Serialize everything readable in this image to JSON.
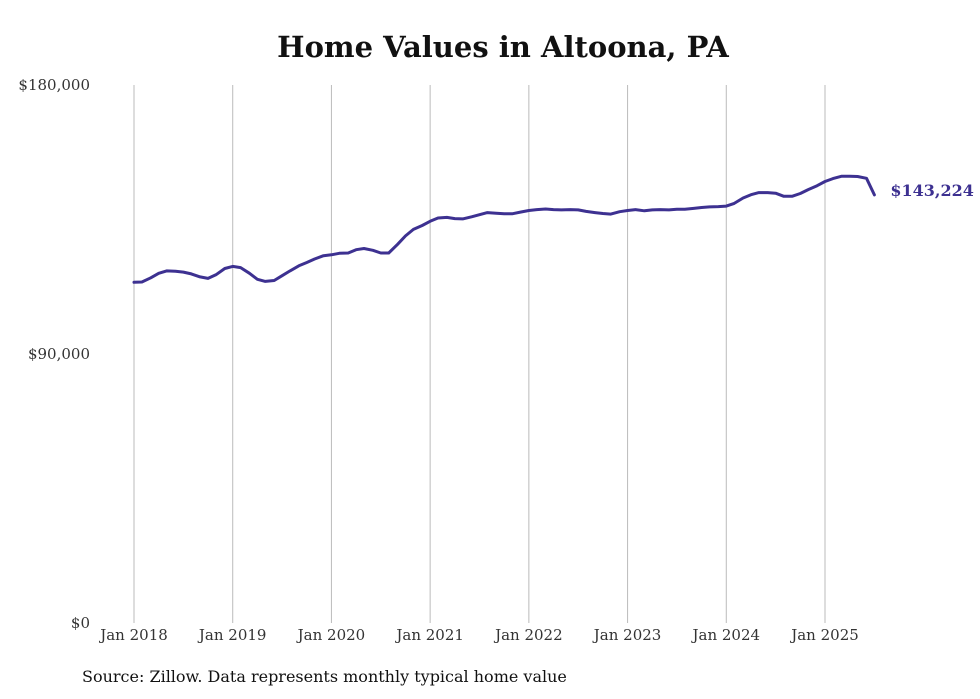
{
  "chart_data": {
    "type": "line",
    "title": "Home Values in Altoona, PA",
    "xlabel": "",
    "ylabel": "",
    "ylim": [
      0,
      180000
    ],
    "y_ticks": [
      {
        "value": 0,
        "label": "$0"
      },
      {
        "value": 90000,
        "label": "$90,000"
      },
      {
        "value": 180000,
        "label": "$180,000"
      }
    ],
    "x_ticks": [
      {
        "value": 2018,
        "label": "Jan 2018"
      },
      {
        "value": 2019,
        "label": "Jan 2019"
      },
      {
        "value": 2020,
        "label": "Jan 2020"
      },
      {
        "value": 2021,
        "label": "Jan 2021"
      },
      {
        "value": 2022,
        "label": "Jan 2022"
      },
      {
        "value": 2023,
        "label": "Jan 2023"
      },
      {
        "value": 2024,
        "label": "Jan 2024"
      },
      {
        "value": 2025,
        "label": "Jan 2025"
      }
    ],
    "xlim": [
      2018,
      2025.5
    ],
    "grid": "vertical",
    "line_color": "#3d3191",
    "grid_color": "#bbbbbb",
    "end_label": "$143,224",
    "series": [
      {
        "x": [
          2018.0,
          2018.08,
          2018.17,
          2018.25,
          2018.33,
          2018.42,
          2018.5,
          2018.58,
          2018.67,
          2018.75,
          2018.83,
          2018.92,
          2019.0,
          2019.08,
          2019.17,
          2019.25,
          2019.33,
          2019.42,
          2019.5,
          2019.58,
          2019.67,
          2019.75,
          2019.83,
          2019.92,
          2020.0,
          2020.08,
          2020.17,
          2020.25,
          2020.33,
          2020.42,
          2020.5,
          2020.58,
          2020.67,
          2020.75,
          2020.83,
          2020.92,
          2021.0,
          2021.08,
          2021.17,
          2021.25,
          2021.33,
          2021.42,
          2021.5,
          2021.58,
          2021.67,
          2021.75,
          2021.83,
          2021.92,
          2022.0,
          2022.08,
          2022.17,
          2022.25,
          2022.33,
          2022.42,
          2022.5,
          2022.58,
          2022.67,
          2022.75,
          2022.83,
          2022.92,
          2023.0,
          2023.08,
          2023.17,
          2023.25,
          2023.33,
          2023.42,
          2023.5,
          2023.58,
          2023.67,
          2023.75,
          2023.83,
          2023.92,
          2024.0,
          2024.08,
          2024.17,
          2024.25,
          2024.33,
          2024.42,
          2024.5,
          2024.58,
          2024.67,
          2024.75,
          2024.83,
          2024.92,
          2025.0,
          2025.08,
          2025.17,
          2025.25,
          2025.33,
          2025.42,
          2025.5
        ],
        "values": [
          114000,
          114100,
          115500,
          117000,
          117800,
          117700,
          117400,
          116800,
          115800,
          115300,
          116500,
          118600,
          119300,
          118900,
          117000,
          115000,
          114300,
          114600,
          116200,
          117800,
          119500,
          120600,
          121800,
          122900,
          123200,
          123700,
          123800,
          124900,
          125300,
          124700,
          123800,
          123800,
          126700,
          129500,
          131700,
          133000,
          134400,
          135500,
          135700,
          135300,
          135200,
          135900,
          136600,
          137300,
          137100,
          136900,
          136900,
          137500,
          138000,
          138300,
          138500,
          138300,
          138200,
          138300,
          138200,
          137700,
          137300,
          137000,
          136800,
          137600,
          138000,
          138300,
          137900,
          138200,
          138300,
          138200,
          138400,
          138400,
          138700,
          139000,
          139200,
          139300,
          139500,
          140400,
          142200,
          143300,
          144000,
          144000,
          143800,
          142800,
          142800,
          143700,
          145000,
          146300,
          147700,
          148700,
          149500,
          149500,
          149400,
          148800,
          143224
        ]
      }
    ]
  },
  "source_note": "Source: Zillow. Data represents monthly typical home value"
}
